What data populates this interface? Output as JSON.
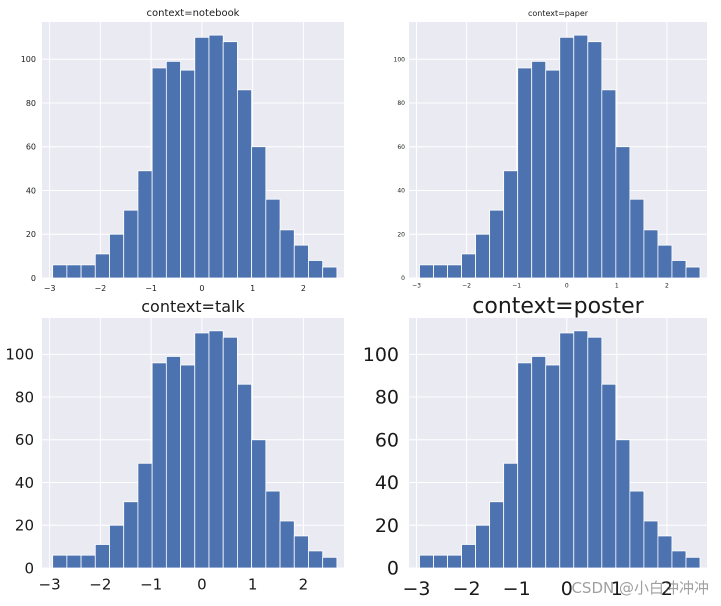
{
  "bar_color": "#4c72b0",
  "panel_bg": "#eaeaf2",
  "grid_color": "#ffffff",
  "text_color": "#1a1a1a",
  "watermark": "CSDN @小白冲冲冲",
  "chart_data": [
    {
      "type": "bar",
      "context": "notebook",
      "title": "context=notebook",
      "xlabel": "",
      "ylabel": "",
      "xlim": [
        -3.15,
        2.8
      ],
      "ylim": [
        0,
        117
      ],
      "xticks": [
        -3,
        -2,
        -1,
        0,
        1,
        2
      ],
      "xtick_labels": [
        "−3",
        "−2",
        "−1",
        "0",
        "1",
        "2"
      ],
      "yticks": [
        0,
        20,
        40,
        60,
        80,
        100
      ],
      "ytick_labels": [
        "0",
        "20",
        "40",
        "60",
        "80",
        "100"
      ],
      "bin_width": 0.28,
      "bin_starts": [
        -2.94,
        -2.66,
        -2.38,
        -2.1,
        -1.82,
        -1.54,
        -1.26,
        -0.98,
        -0.7,
        -0.42,
        -0.14,
        0.14,
        0.42,
        0.7,
        0.98,
        1.26,
        1.54,
        1.82,
        2.1,
        2.38
      ],
      "values": [
        6,
        6,
        6,
        11,
        20,
        31,
        49,
        96,
        99,
        95,
        110,
        111,
        108,
        86,
        60,
        36,
        22,
        15,
        8,
        5
      ],
      "grid": true
    },
    {
      "type": "bar",
      "context": "paper",
      "title": "context=paper",
      "xlabel": "",
      "ylabel": "",
      "xlim": [
        -3.15,
        2.8
      ],
      "ylim": [
        0,
        117
      ],
      "xticks": [
        -3,
        -2,
        -1,
        0,
        1,
        2
      ],
      "xtick_labels": [
        "−3",
        "−2",
        "−1",
        "0",
        "1",
        "2"
      ],
      "yticks": [
        0,
        20,
        40,
        60,
        80,
        100
      ],
      "ytick_labels": [
        "0",
        "20",
        "40",
        "60",
        "80",
        "100"
      ],
      "bin_width": 0.28,
      "bin_starts": [
        -2.94,
        -2.66,
        -2.38,
        -2.1,
        -1.82,
        -1.54,
        -1.26,
        -0.98,
        -0.7,
        -0.42,
        -0.14,
        0.14,
        0.42,
        0.7,
        0.98,
        1.26,
        1.54,
        1.82,
        2.1,
        2.38
      ],
      "values": [
        6,
        6,
        6,
        11,
        20,
        31,
        49,
        96,
        99,
        95,
        110,
        111,
        108,
        86,
        60,
        36,
        22,
        15,
        8,
        5
      ],
      "grid": true
    },
    {
      "type": "bar",
      "context": "talk",
      "title": "context=talk",
      "xlabel": "",
      "ylabel": "",
      "xlim": [
        -3.15,
        2.8
      ],
      "ylim": [
        0,
        117
      ],
      "xticks": [
        -3,
        -2,
        -1,
        0,
        1,
        2
      ],
      "xtick_labels": [
        "−3",
        "−2",
        "−1",
        "0",
        "1",
        "2"
      ],
      "yticks": [
        0,
        20,
        40,
        60,
        80,
        100
      ],
      "ytick_labels": [
        "0",
        "20",
        "40",
        "60",
        "80",
        "100"
      ],
      "bin_width": 0.28,
      "bin_starts": [
        -2.94,
        -2.66,
        -2.38,
        -2.1,
        -1.82,
        -1.54,
        -1.26,
        -0.98,
        -0.7,
        -0.42,
        -0.14,
        0.14,
        0.42,
        0.7,
        0.98,
        1.26,
        1.54,
        1.82,
        2.1,
        2.38
      ],
      "values": [
        6,
        6,
        6,
        11,
        20,
        31,
        49,
        96,
        99,
        95,
        110,
        111,
        108,
        86,
        60,
        36,
        22,
        15,
        8,
        5
      ],
      "grid": true
    },
    {
      "type": "bar",
      "context": "poster",
      "title": "context=poster",
      "xlabel": "",
      "ylabel": "",
      "xlim": [
        -3.15,
        2.8
      ],
      "ylim": [
        0,
        117
      ],
      "xticks": [
        -3,
        -2,
        -1,
        0,
        1,
        2
      ],
      "xtick_labels": [
        "−3",
        "−2",
        "−1",
        "0",
        "1",
        "2"
      ],
      "yticks": [
        0,
        20,
        40,
        60,
        80,
        100
      ],
      "ytick_labels": [
        "0",
        "20",
        "40",
        "60",
        "80",
        "100"
      ],
      "bin_width": 0.28,
      "bin_starts": [
        -2.94,
        -2.66,
        -2.38,
        -2.1,
        -1.82,
        -1.54,
        -1.26,
        -0.98,
        -0.7,
        -0.42,
        -0.14,
        0.14,
        0.42,
        0.7,
        0.98,
        1.26,
        1.54,
        1.82,
        2.1,
        2.38
      ],
      "values": [
        6,
        6,
        6,
        11,
        20,
        31,
        49,
        96,
        99,
        95,
        110,
        111,
        108,
        86,
        60,
        36,
        22,
        15,
        8,
        5
      ],
      "grid": true
    }
  ]
}
